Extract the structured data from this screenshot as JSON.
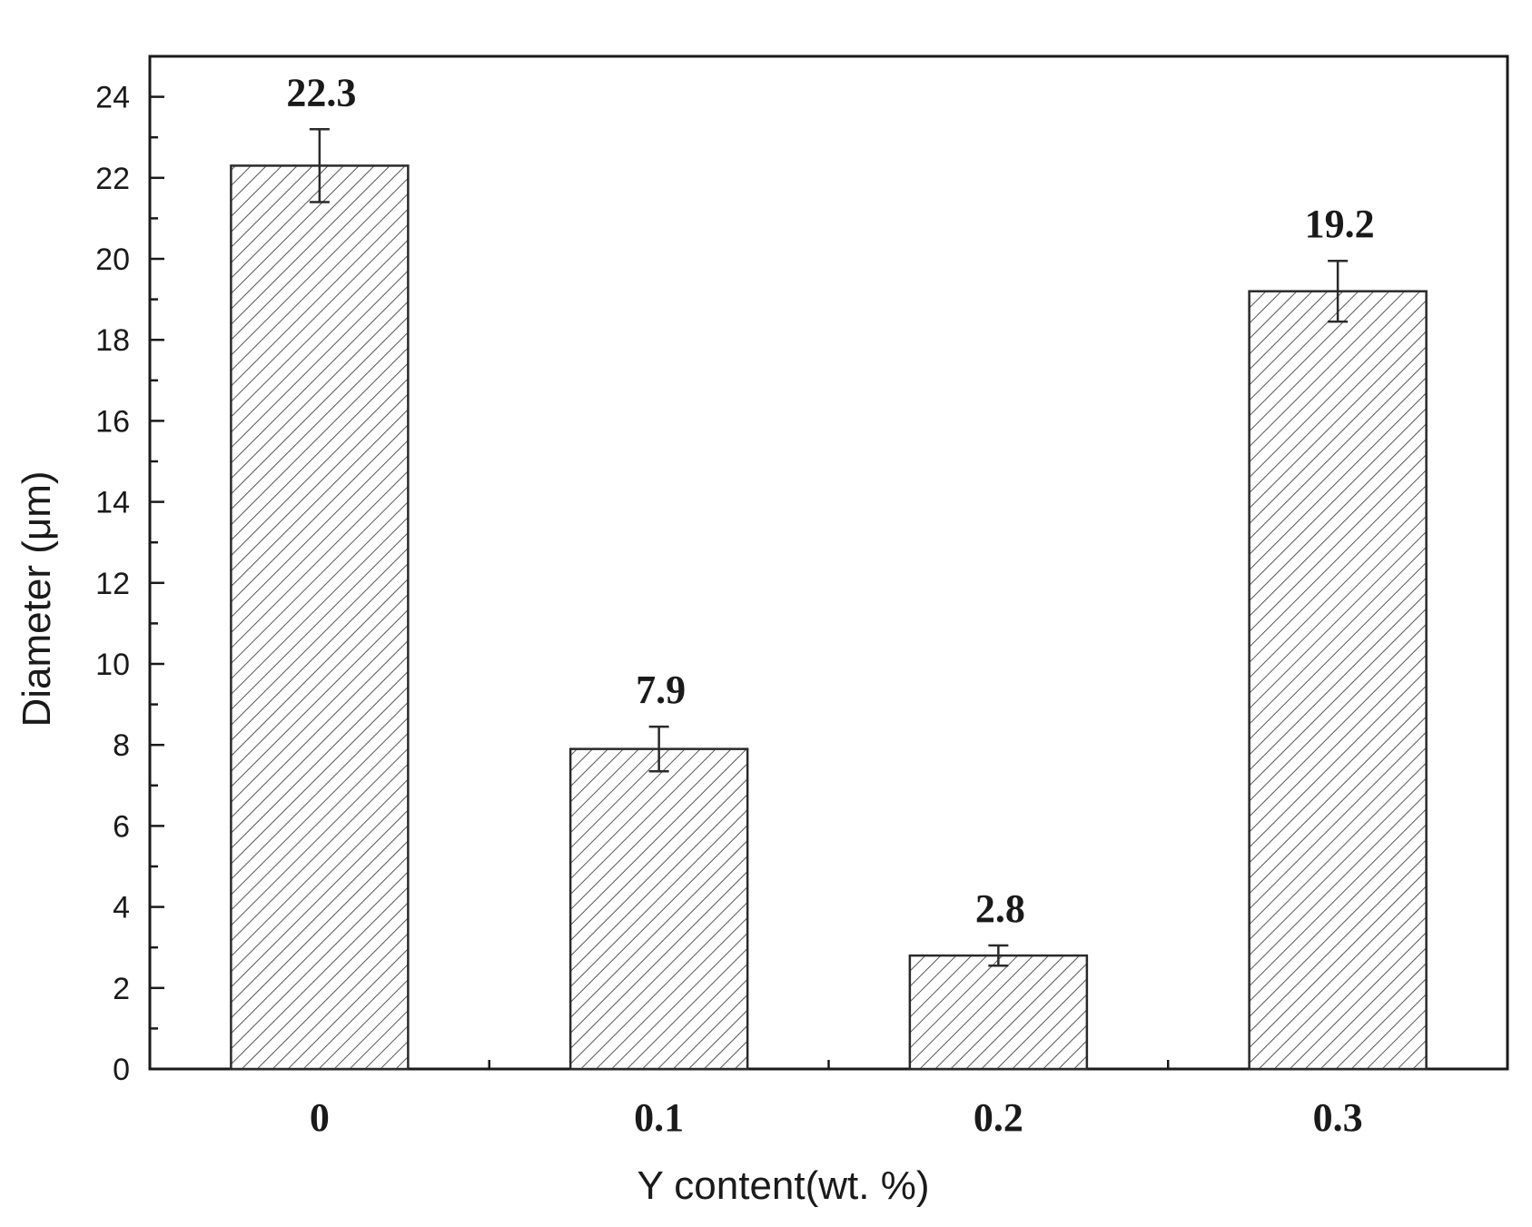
{
  "chart_data": {
    "type": "bar",
    "categories": [
      "0",
      "0.1",
      "0.2",
      "0.3"
    ],
    "values": [
      22.3,
      7.9,
      2.8,
      19.2
    ],
    "error": [
      0.9,
      0.55,
      0.25,
      0.75
    ],
    "data_labels": [
      "22.3",
      "7.9",
      "2.8",
      "19.2"
    ],
    "title": "",
    "xlabel": "Y content(wt. %)",
    "ylabel": "Diameter (μm)",
    "ylim": [
      0,
      25
    ],
    "yticks": [
      0,
      2,
      4,
      6,
      8,
      10,
      12,
      14,
      16,
      18,
      20,
      22,
      24
    ],
    "ytick_labels": [
      "0",
      "2",
      "4",
      "6",
      "8",
      "10",
      "12",
      "14",
      "16",
      "18",
      "20",
      "22",
      "24"
    ],
    "bar_fill": "hatched",
    "grid": false,
    "colors": {
      "axis": "#1a1a1a",
      "bar_outline": "#2a2a2a",
      "hatch": "#555555",
      "background": "#ffffff"
    }
  }
}
